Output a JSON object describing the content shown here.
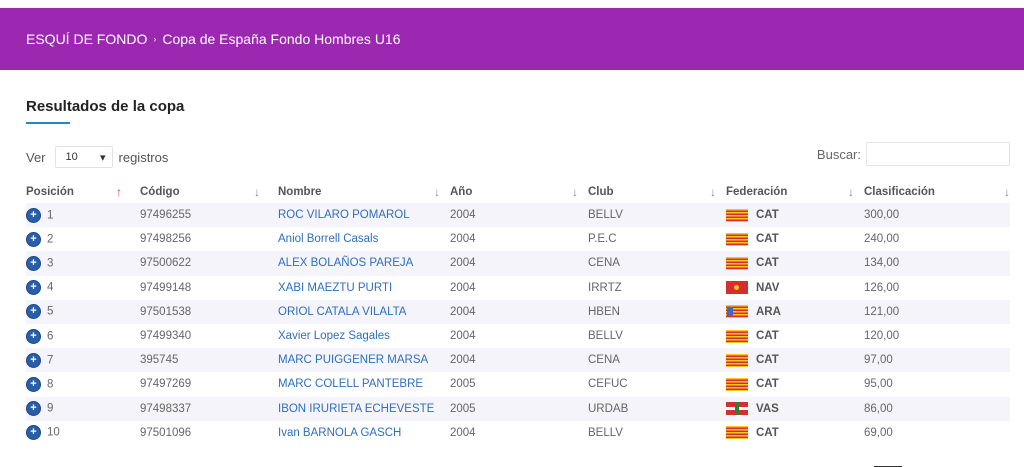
{
  "breadcrumb": {
    "root": "ESQUÍ DE FONDO",
    "separator": "›",
    "current": "Copa de España Fondo Hombres U16"
  },
  "section": {
    "title": "Resultados de la copa"
  },
  "length": {
    "prefix": "Ver",
    "value": "10",
    "suffix": "registros",
    "arrow": "▾"
  },
  "search": {
    "label": "Buscar:",
    "value": ""
  },
  "table": {
    "headers": [
      "Posición",
      "Código",
      "Nombre",
      "Año",
      "Club",
      "Federación",
      "Clasificación"
    ],
    "sort_icons": {
      "active": "↑",
      "inactive": "↓"
    },
    "expand_icon": "+",
    "rows": [
      {
        "pos": "1",
        "code": "97496255",
        "name": "ROC VILARO POMAROL",
        "year": "2004",
        "club": "BELLV",
        "fed": "CAT",
        "flag": "cat",
        "score": "300,00"
      },
      {
        "pos": "2",
        "code": "97498256",
        "name": "Aniol Borrell Casals",
        "year": "2004",
        "club": "P.E.C",
        "fed": "CAT",
        "flag": "cat",
        "score": "240,00"
      },
      {
        "pos": "3",
        "code": "97500622",
        "name": "ALEX BOLAÑOS PAREJA",
        "year": "2004",
        "club": "CENA",
        "fed": "CAT",
        "flag": "cat",
        "score": "134,00"
      },
      {
        "pos": "4",
        "code": "97499148",
        "name": "XABI MAEZTU PURTI",
        "year": "2004",
        "club": "IRRTZ",
        "fed": "NAV",
        "flag": "nav",
        "score": "126,00"
      },
      {
        "pos": "5",
        "code": "97501538",
        "name": "ORIOL CATALA VILALTA",
        "year": "2004",
        "club": "HBEN",
        "fed": "ARA",
        "flag": "ara",
        "score": "121,00"
      },
      {
        "pos": "6",
        "code": "97499340",
        "name": "Xavier Lopez Sagales",
        "year": "2004",
        "club": "BELLV",
        "fed": "CAT",
        "flag": "cat",
        "score": "120,00"
      },
      {
        "pos": "7",
        "code": "395745",
        "name": "MARC PUIGGENER MARSA",
        "year": "2004",
        "club": "CENA",
        "fed": "CAT",
        "flag": "cat",
        "score": "97,00"
      },
      {
        "pos": "8",
        "code": "97497269",
        "name": "MARC COLELL PANTEBRE",
        "year": "2005",
        "club": "CEFUC",
        "fed": "CAT",
        "flag": "cat",
        "score": "95,00"
      },
      {
        "pos": "9",
        "code": "97498337",
        "name": "IBON IRURIETA ECHEVESTE",
        "year": "2005",
        "club": "URDAB",
        "fed": "VAS",
        "flag": "vas",
        "score": "86,00"
      },
      {
        "pos": "10",
        "code": "97501096",
        "name": "Ivan BARNOLA GASCH",
        "year": "2004",
        "club": "BELLV",
        "fed": "CAT",
        "flag": "cat",
        "score": "69,00"
      }
    ]
  },
  "colors": {
    "banner": "#9c27b0",
    "link": "#2e6fbd",
    "accent": "#1e88c7",
    "sort_active": "#e53935"
  }
}
